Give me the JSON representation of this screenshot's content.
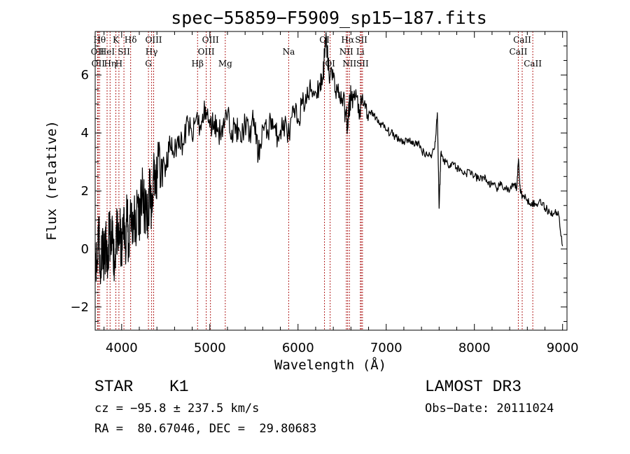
{
  "chart_data": {
    "type": "line",
    "title": "spec−55859−F5909_sp15−187.fits",
    "xlabel": "Wavelength (Å)",
    "ylabel": "Flux (relative)",
    "xlim": [
      3700,
      9050
    ],
    "ylim": [
      -2.8,
      7.5
    ],
    "x_ticks": [
      4000,
      5000,
      6000,
      7000,
      8000,
      9000
    ],
    "y_ticks": [
      -2,
      0,
      2,
      4,
      6
    ],
    "grid": false,
    "line_color": "#000000",
    "marker_color": "#b22222",
    "series": [
      {
        "name": "flux",
        "x": [
          3700,
          3720,
          3740,
          3760,
          3780,
          3800,
          3820,
          3840,
          3860,
          3880,
          3900,
          3920,
          3940,
          3960,
          3980,
          4000,
          4020,
          4040,
          4060,
          4080,
          4100,
          4120,
          4140,
          4160,
          4180,
          4200,
          4220,
          4240,
          4260,
          4280,
          4300,
          4320,
          4340,
          4360,
          4380,
          4400,
          4450,
          4500,
          4550,
          4600,
          4650,
          4700,
          4750,
          4800,
          4850,
          4900,
          4950,
          5000,
          5050,
          5100,
          5150,
          5200,
          5250,
          5300,
          5350,
          5400,
          5450,
          5500,
          5550,
          5600,
          5650,
          5700,
          5750,
          5800,
          5850,
          5900,
          5950,
          6000,
          6050,
          6100,
          6150,
          6200,
          6250,
          6280,
          6300,
          6320,
          6350,
          6400,
          6450,
          6500,
          6550,
          6562,
          6580,
          6600,
          6650,
          6700,
          6750,
          6800,
          6850,
          6900,
          6950,
          7000,
          7050,
          7100,
          7150,
          7200,
          7250,
          7300,
          7350,
          7400,
          7450,
          7500,
          7550,
          7580,
          7600,
          7620,
          7650,
          7700,
          7750,
          7800,
          7850,
          7900,
          7950,
          8000,
          8050,
          8100,
          8150,
          8200,
          8250,
          8300,
          8350,
          8400,
          8450,
          8480,
          8500,
          8520,
          8550,
          8600,
          8650,
          8700,
          8750,
          8800,
          8850,
          8900,
          8950,
          9000
        ],
        "y": [
          0.2,
          -0.8,
          1.1,
          -1.2,
          0.6,
          -0.5,
          0.3,
          -1.0,
          0.9,
          -0.2,
          0.5,
          -0.7,
          0.8,
          0.1,
          0.7,
          -0.4,
          1.2,
          0.0,
          1.5,
          -0.3,
          1.7,
          0.6,
          1.3,
          0.4,
          1.8,
          1.1,
          1.6,
          2.0,
          1.2,
          1.4,
          0.9,
          2.4,
          1.1,
          2.6,
          1.9,
          2.7,
          3.1,
          2.9,
          3.6,
          3.3,
          3.9,
          3.6,
          4.4,
          3.8,
          4.6,
          4.1,
          4.9,
          4.2,
          4.4,
          4.0,
          4.3,
          4.6,
          4.1,
          4.2,
          3.7,
          4.4,
          3.9,
          4.5,
          3.2,
          4.2,
          4.0,
          4.5,
          3.9,
          4.1,
          4.3,
          3.9,
          4.7,
          4.5,
          5.0,
          5.2,
          5.5,
          5.4,
          5.7,
          5.9,
          6.6,
          7.2,
          6.1,
          5.9,
          5.4,
          5.2,
          4.6,
          4.1,
          4.9,
          5.3,
          5.2,
          4.8,
          5.0,
          4.6,
          4.7,
          4.4,
          4.3,
          4.1,
          4.0,
          3.9,
          3.8,
          3.7,
          3.8,
          3.6,
          3.7,
          3.4,
          3.3,
          3.2,
          3.5,
          4.7,
          1.4,
          3.3,
          3.1,
          2.9,
          3.0,
          2.8,
          2.7,
          2.6,
          2.7,
          2.5,
          2.4,
          2.5,
          2.3,
          2.2,
          2.1,
          2.2,
          2.1,
          2.0,
          2.2,
          2.1,
          3.1,
          2.0,
          1.8,
          1.7,
          1.6,
          1.5,
          1.7,
          1.4,
          1.3,
          1.2,
          1.3,
          0.1
        ]
      }
    ],
    "line_markers": [
      {
        "wl": 3727,
        "label": "OII",
        "row": 2
      },
      {
        "wl": 3734,
        "label": "OII",
        "row": 3
      },
      {
        "wl": 3750,
        "label": "Hθ",
        "row": 1
      },
      {
        "wl": 3835,
        "label": "HeI",
        "row": 2
      },
      {
        "wl": 3869,
        "label": "Hη",
        "row": 3
      },
      {
        "wl": 3934,
        "label": "K",
        "row": 1
      },
      {
        "wl": 3969,
        "label": "H",
        "row": 3
      },
      {
        "wl": 4026,
        "label": "SII",
        "row": 2
      },
      {
        "wl": 4102,
        "label": "Hδ",
        "row": 1
      },
      {
        "wl": 4304,
        "label": "G",
        "row": 3
      },
      {
        "wl": 4340,
        "label": "Hγ",
        "row": 2
      },
      {
        "wl": 4363,
        "label": "OIII",
        "row": 1
      },
      {
        "wl": 4861,
        "label": "Hβ",
        "row": 3
      },
      {
        "wl": 4959,
        "label": "OIII",
        "row": 2
      },
      {
        "wl": 5007,
        "label": "OIII",
        "row": 1
      },
      {
        "wl": 5175,
        "label": "Mg",
        "row": 3
      },
      {
        "wl": 5894,
        "label": "Na",
        "row": 2
      },
      {
        "wl": 6300,
        "label": "OI",
        "row": 1
      },
      {
        "wl": 6364,
        "label": "OI",
        "row": 3
      },
      {
        "wl": 6548,
        "label": "NII",
        "row": 2
      },
      {
        "wl": 6563,
        "label": "Hα",
        "row": 1
      },
      {
        "wl": 6583,
        "label": "NII",
        "row": 3
      },
      {
        "wl": 6707,
        "label": "Li",
        "row": 2
      },
      {
        "wl": 6717,
        "label": "SII",
        "row": 1
      },
      {
        "wl": 6731,
        "label": "SII",
        "row": 3
      },
      {
        "wl": 8498,
        "label": "CaII",
        "row": 2
      },
      {
        "wl": 8542,
        "label": "CaII",
        "row": 1
      },
      {
        "wl": 8662,
        "label": "CaII",
        "row": 3
      }
    ]
  },
  "footer": {
    "object_type": "STAR",
    "subclass": "K1",
    "survey": "LAMOST DR3",
    "cz": "cz = −95.8 ± 237.5 km/s",
    "obs_date": "Obs−Date: 20111024",
    "coords": "RA =  80.67046, DEC =  29.80683"
  }
}
